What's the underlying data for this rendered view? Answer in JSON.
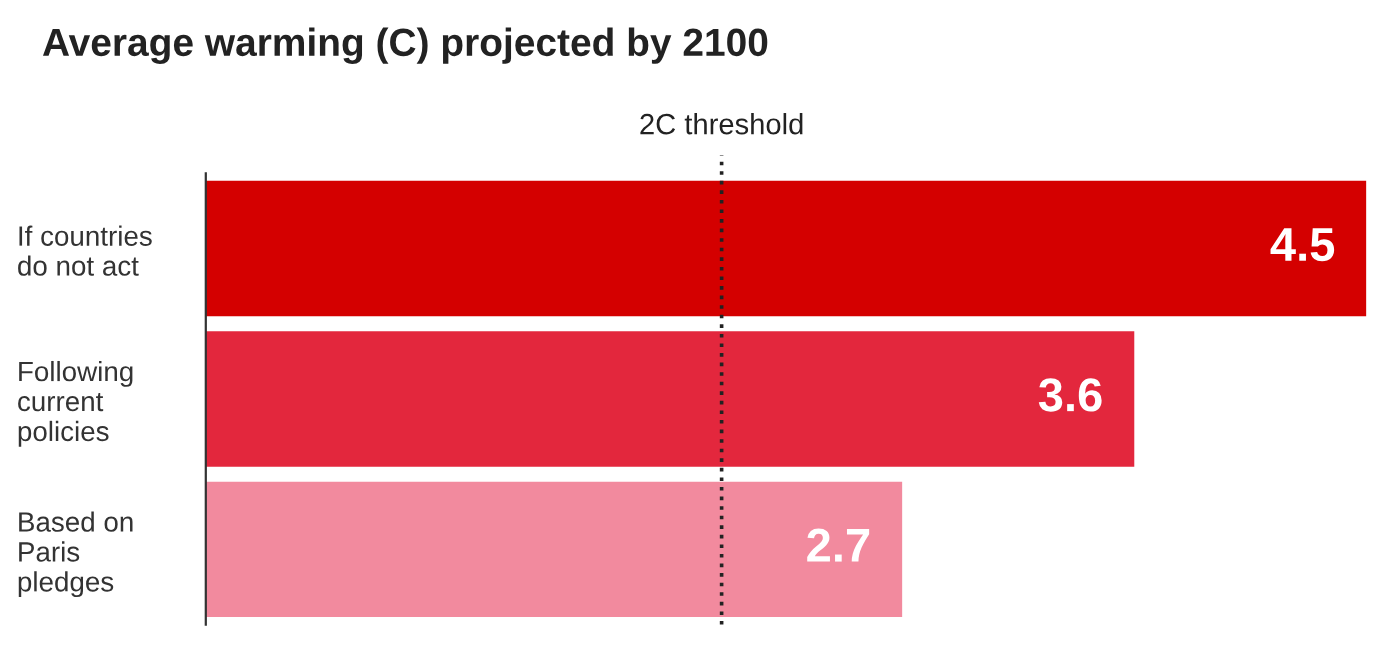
{
  "chart_data": {
    "type": "bar",
    "orientation": "horizontal",
    "title": "Average warming (C) projected by 2100",
    "categories": [
      "If countries\ndo not act",
      "Following\ncurrent\npolicies",
      "Based on\nParis\npledges"
    ],
    "values": [
      4.5,
      3.6,
      2.7
    ],
    "colors": [
      "#d40000",
      "#e3273d",
      "#f28a9e"
    ],
    "data_labels": true,
    "ref_lines": [
      {
        "axis": "x",
        "value": 2,
        "label": "2C threshold",
        "color": "#222222",
        "line_style": "dotted"
      }
    ],
    "grid": false,
    "legend": false
  }
}
